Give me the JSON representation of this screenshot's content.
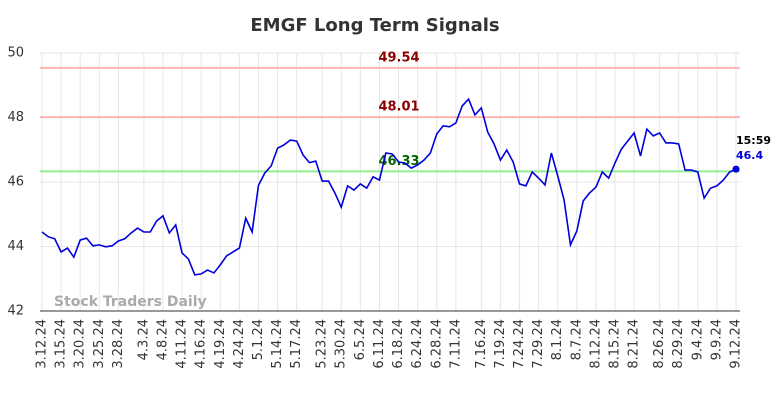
{
  "chart_data": {
    "type": "line",
    "title": "EMGF Long Term Signals",
    "watermark": "Stock Traders Daily",
    "categories": [
      "3.12.24",
      null,
      null,
      "3.15.24",
      null,
      null,
      "3.20.24",
      null,
      null,
      "3.25.24",
      null,
      null,
      "3.28.24",
      null,
      null,
      null,
      "4.3.24",
      null,
      null,
      "4.8.24",
      null,
      null,
      "4.11.24",
      null,
      null,
      "4.16.24",
      null,
      null,
      "4.19.24",
      null,
      null,
      "4.24.24",
      null,
      null,
      "5.1.24",
      null,
      null,
      "5.14.24",
      null,
      null,
      "5.17.24",
      null,
      null,
      null,
      "5.23.24",
      null,
      null,
      "5.30.24",
      null,
      null,
      "6.5.24",
      null,
      null,
      "6.11.24",
      null,
      null,
      "6.18.24",
      null,
      null,
      "6.24.24",
      null,
      null,
      "6.28.24",
      null,
      null,
      "7.11.24",
      null,
      null,
      null,
      "7.16.24",
      null,
      null,
      "7.19.24",
      null,
      null,
      "7.24.24",
      null,
      null,
      "7.29.24",
      null,
      null,
      "8.1.24",
      null,
      null,
      "8.7.24",
      null,
      null,
      "8.12.24",
      null,
      null,
      "8.15.24",
      null,
      null,
      "8.21.24",
      null,
      null,
      null,
      "8.26.24",
      null,
      null,
      "8.29.24",
      null,
      null,
      "9.4.24",
      null,
      null,
      "9.9.24",
      null,
      null,
      "9.12.24"
    ],
    "series": [
      {
        "name": "EMGF",
        "color": "#0000dd",
        "values": [
          44.45,
          44.3,
          44.24,
          43.83,
          43.95,
          43.67,
          44.2,
          44.26,
          44.02,
          44.05,
          43.99,
          44.02,
          44.17,
          44.24,
          44.42,
          44.57,
          44.45,
          44.45,
          44.79,
          44.95,
          44.42,
          44.67,
          43.8,
          43.61,
          43.12,
          43.15,
          43.27,
          43.18,
          43.43,
          43.71,
          43.83,
          43.95,
          44.88,
          44.45,
          45.9,
          46.28,
          46.5,
          47.05,
          47.15,
          47.3,
          47.27,
          46.84,
          46.6,
          46.65,
          46.03,
          46.03,
          45.66,
          45.22,
          45.88,
          45.75,
          45.94,
          45.81,
          46.16,
          46.06,
          46.9,
          46.87,
          46.62,
          46.59,
          46.43,
          46.53,
          46.68,
          46.9,
          47.49,
          47.74,
          47.71,
          47.83,
          48.36,
          48.57,
          48.08,
          48.3,
          47.55,
          47.18,
          46.68,
          46.99,
          46.62,
          45.94,
          45.88,
          46.31,
          46.12,
          45.91,
          46.9,
          46.19,
          45.44,
          44.05,
          44.48,
          45.41,
          45.66,
          45.84,
          46.31,
          46.12,
          46.59,
          47.02,
          47.27,
          47.52,
          46.81,
          47.64,
          47.43,
          47.52,
          47.21,
          47.21,
          47.18,
          46.37,
          46.37,
          46.31,
          45.5,
          45.81,
          45.88,
          46.06,
          46.31,
          46.4
        ]
      }
    ],
    "last_time_label": "15:59",
    "reference_lines": [
      {
        "value": 49.54,
        "color": "#ffb3b3",
        "label_color": "#8b0000"
      },
      {
        "value": 48.01,
        "color": "#ffb3b3",
        "label_color": "#8b0000"
      },
      {
        "value": 46.33,
        "color": "#90ee90",
        "label_color": "#006400"
      }
    ],
    "ylim": [
      42,
      50
    ],
    "yticks": [
      42,
      44,
      46,
      48,
      50
    ],
    "grid": true
  }
}
